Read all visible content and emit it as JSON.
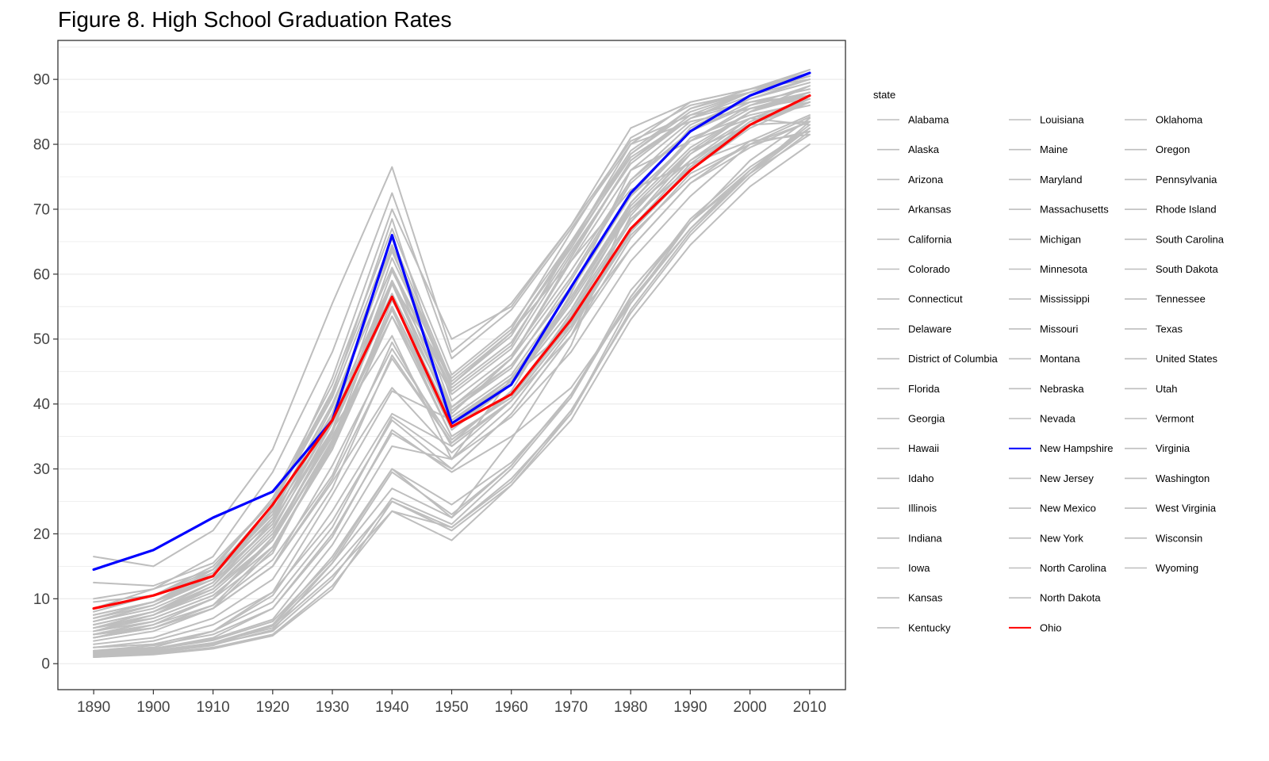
{
  "chart_data": {
    "type": "line",
    "title": "Figure 8. High School Graduation Rates",
    "xlabel": "",
    "ylabel": "",
    "x": [
      1890,
      1900,
      1910,
      1920,
      1930,
      1940,
      1950,
      1960,
      1970,
      1980,
      1990,
      2000,
      2010
    ],
    "xlim": [
      1884,
      2016
    ],
    "ylim": [
      -4,
      96
    ],
    "y_ticks": [
      0,
      10,
      20,
      30,
      40,
      50,
      60,
      70,
      80,
      90
    ],
    "grid": true,
    "legend_title": "state",
    "legend_position": "right",
    "colors": {
      "default": "#bebebe",
      "highlight_blue": "#0000ff",
      "highlight_red": "#ff0000"
    },
    "highlight": {
      "New Hampshire": "#0000ff",
      "Ohio": "#ff0000"
    },
    "series": [
      {
        "name": "Alabama",
        "values": [
          2.0,
          2.3,
          3.8,
          6.8,
          18.3,
          33.5,
          31.5,
          44.0,
          52.0,
          66.0,
          74.8,
          80.0,
          84.2
        ]
      },
      {
        "name": "Alaska",
        "values": [
          1.2,
          1.6,
          2.9,
          5.2,
          15.5,
          27.0,
          22.5,
          34.5,
          49.0,
          71.0,
          81.0,
          84.5,
          86.5
        ]
      },
      {
        "name": "Arizona",
        "values": [
          4.5,
          5.5,
          8.5,
          15.0,
          28.0,
          42.5,
          32.5,
          40.5,
          50.5,
          69.0,
          79.0,
          83.0,
          83.5
        ]
      },
      {
        "name": "Arkansas",
        "values": [
          1.5,
          1.9,
          3.1,
          5.8,
          14.5,
          25.0,
          20.5,
          27.5,
          38.5,
          55.5,
          67.0,
          76.0,
          83.0
        ]
      },
      {
        "name": "California",
        "values": [
          7.5,
          9.5,
          13.5,
          23.0,
          40.0,
          61.0,
          38.5,
          47.0,
          62.0,
          76.0,
          80.5,
          84.0,
          83.0
        ]
      },
      {
        "name": "Colorado",
        "values": [
          6.5,
          8.5,
          12.5,
          21.5,
          37.5,
          57.0,
          39.0,
          45.5,
          59.0,
          74.0,
          82.0,
          86.5,
          88.5
        ]
      },
      {
        "name": "Connecticut",
        "values": [
          8.0,
          10.5,
          14.5,
          23.5,
          38.5,
          64.0,
          39.5,
          46.0,
          58.0,
          72.0,
          82.5,
          87.0,
          89.5
        ]
      },
      {
        "name": "Delaware",
        "values": [
          5.5,
          7.0,
          10.5,
          18.0,
          33.0,
          53.5,
          35.0,
          41.0,
          54.0,
          68.0,
          77.5,
          84.0,
          86.0
        ]
      },
      {
        "name": "District of Columbia",
        "values": [
          6.0,
          8.0,
          12.0,
          21.0,
          36.0,
          50.5,
          31.5,
          38.0,
          48.0,
          62.0,
          72.0,
          80.0,
          82.0
        ]
      },
      {
        "name": "Florida",
        "values": [
          2.5,
          3.0,
          5.0,
          10.5,
          23.5,
          38.5,
          33.5,
          40.5,
          52.0,
          64.0,
          74.0,
          80.5,
          84.5
        ]
      },
      {
        "name": "Georgia",
        "values": [
          1.8,
          2.2,
          3.6,
          6.5,
          16.0,
          30.0,
          24.5,
          31.0,
          41.0,
          56.5,
          68.5,
          76.5,
          82.5
        ]
      },
      {
        "name": "Hawaii",
        "values": [
          3.0,
          4.0,
          7.0,
          13.0,
          27.0,
          47.5,
          34.0,
          42.0,
          57.0,
          76.0,
          83.5,
          85.5,
          87.5
        ]
      },
      {
        "name": "Idaho",
        "values": [
          5.0,
          6.5,
          10.0,
          19.5,
          36.0,
          58.5,
          39.5,
          47.0,
          59.5,
          74.5,
          82.0,
          86.0,
          88.0
        ]
      },
      {
        "name": "Illinois",
        "values": [
          5.5,
          7.5,
          11.0,
          19.0,
          34.5,
          55.0,
          36.0,
          43.0,
          56.0,
          70.5,
          79.5,
          85.0,
          87.5
        ]
      },
      {
        "name": "Indiana",
        "values": [
          6.0,
          8.0,
          11.5,
          20.0,
          35.0,
          53.5,
          37.5,
          43.0,
          54.5,
          68.5,
          76.5,
          83.0,
          86.5
        ]
      },
      {
        "name": "Iowa",
        "values": [
          7.0,
          9.0,
          13.0,
          22.5,
          38.5,
          59.0,
          41.5,
          48.5,
          63.0,
          77.5,
          84.5,
          88.0,
          90.5
        ]
      },
      {
        "name": "Kansas",
        "values": [
          6.5,
          9.0,
          13.5,
          23.5,
          40.0,
          61.0,
          42.5,
          49.5,
          63.5,
          77.0,
          84.0,
          87.5,
          90.0
        ]
      },
      {
        "name": "Kentucky",
        "values": [
          1.7,
          2.0,
          3.2,
          5.5,
          13.5,
          23.5,
          21.0,
          28.0,
          39.0,
          54.0,
          66.0,
          75.0,
          82.0
        ]
      },
      {
        "name": "Louisiana",
        "values": [
          1.5,
          1.8,
          3.0,
          5.0,
          13.0,
          25.5,
          21.5,
          30.0,
          41.0,
          57.5,
          68.0,
          75.5,
          81.5
        ]
      },
      {
        "name": "Maine",
        "values": [
          9.5,
          10.5,
          14.0,
          22.0,
          36.0,
          56.5,
          37.5,
          43.0,
          54.5,
          70.0,
          79.0,
          85.0,
          89.0
        ]
      },
      {
        "name": "Maryland",
        "values": [
          4.0,
          5.5,
          8.5,
          15.0,
          30.5,
          48.5,
          34.5,
          41.5,
          53.5,
          68.0,
          78.5,
          85.0,
          88.0
        ]
      },
      {
        "name": "Massachusetts",
        "values": [
          12.5,
          12.0,
          15.5,
          25.0,
          41.5,
          68.5,
          40.5,
          47.5,
          60.5,
          74.5,
          83.0,
          87.0,
          89.5
        ]
      },
      {
        "name": "Michigan",
        "values": [
          5.5,
          7.5,
          11.5,
          20.5,
          37.0,
          58.5,
          38.0,
          44.5,
          57.5,
          72.0,
          80.5,
          85.5,
          88.0
        ]
      },
      {
        "name": "Minnesota",
        "values": [
          4.5,
          6.5,
          10.0,
          19.5,
          35.5,
          60.5,
          42.0,
          49.0,
          64.5,
          80.0,
          86.5,
          88.5,
          91.5
        ]
      },
      {
        "name": "Mississippi",
        "values": [
          1.0,
          1.5,
          2.5,
          4.5,
          12.0,
          23.5,
          19.0,
          27.5,
          37.5,
          53.0,
          64.5,
          73.5,
          80.0
        ]
      },
      {
        "name": "Missouri",
        "values": [
          4.0,
          5.5,
          8.5,
          15.0,
          28.5,
          47.0,
          34.0,
          40.5,
          52.0,
          67.0,
          77.0,
          83.5,
          87.0
        ]
      },
      {
        "name": "Montana",
        "values": [
          7.0,
          9.5,
          14.0,
          24.5,
          41.0,
          64.5,
          43.0,
          51.0,
          64.0,
          78.5,
          85.5,
          88.0,
          90.5
        ]
      },
      {
        "name": "Nebraska",
        "values": [
          7.5,
          9.5,
          14.5,
          25.5,
          43.0,
          67.0,
          44.5,
          52.0,
          65.0,
          78.5,
          85.0,
          88.0,
          90.5
        ]
      },
      {
        "name": "Nevada",
        "values": [
          8.0,
          10.5,
          15.0,
          25.0,
          42.0,
          65.5,
          43.5,
          51.0,
          62.0,
          73.0,
          77.0,
          80.5,
          81.5
        ]
      },
      {
        "name": "New Hampshire",
        "values": [
          14.5,
          17.5,
          22.5,
          26.5,
          37.5,
          66.0,
          37.0,
          43.0,
          58.0,
          72.5,
          82.0,
          87.5,
          91.0
        ]
      },
      {
        "name": "New Jersey",
        "values": [
          4.5,
          6.5,
          10.0,
          17.0,
          34.5,
          55.0,
          37.0,
          44.0,
          56.5,
          71.0,
          80.5,
          85.5,
          88.0
        ]
      },
      {
        "name": "New Mexico",
        "values": [
          2.5,
          3.5,
          6.0,
          11.0,
          22.0,
          37.5,
          30.0,
          38.5,
          50.5,
          65.5,
          75.5,
          80.0,
          83.5
        ]
      },
      {
        "name": "New York",
        "values": [
          7.5,
          9.5,
          13.0,
          21.5,
          38.0,
          57.0,
          36.5,
          43.0,
          55.5,
          69.5,
          78.5,
          84.0,
          87.0
        ]
      },
      {
        "name": "North Carolina",
        "values": [
          1.3,
          1.7,
          2.8,
          6.0,
          16.5,
          30.0,
          22.5,
          30.5,
          41.5,
          56.0,
          67.0,
          75.5,
          83.5
        ]
      },
      {
        "name": "North Dakota",
        "values": [
          3.5,
          5.0,
          8.5,
          17.5,
          34.0,
          58.5,
          44.0,
          51.5,
          66.5,
          81.0,
          86.0,
          88.0,
          91.5
        ]
      },
      {
        "name": "Ohio",
        "values": [
          8.5,
          10.5,
          13.5,
          24.5,
          37.5,
          56.5,
          36.5,
          41.5,
          53.0,
          67.0,
          76.0,
          83.0,
          87.5
        ]
      },
      {
        "name": "Oklahoma",
        "values": [
          2.0,
          2.5,
          5.0,
          11.0,
          26.0,
          42.0,
          37.5,
          44.0,
          56.0,
          70.0,
          77.5,
          83.0,
          86.5
        ]
      },
      {
        "name": "Oregon",
        "values": [
          8.5,
          11.5,
          16.5,
          29.5,
          48.0,
          72.5,
          47.0,
          54.5,
          67.0,
          80.0,
          83.5,
          85.5,
          87.0
        ]
      },
      {
        "name": "Pennsylvania",
        "values": [
          5.0,
          7.0,
          10.5,
          18.0,
          33.5,
          53.5,
          37.0,
          43.5,
          56.0,
          71.0,
          80.5,
          86.0,
          89.0
        ]
      },
      {
        "name": "Rhode Island",
        "values": [
          6.0,
          8.0,
          11.5,
          19.0,
          34.0,
          54.5,
          35.0,
          41.0,
          52.5,
          66.5,
          76.5,
          83.5,
          86.5
        ]
      },
      {
        "name": "South Carolina",
        "values": [
          1.0,
          1.4,
          2.3,
          4.3,
          11.5,
          25.0,
          21.0,
          28.5,
          38.5,
          54.5,
          66.5,
          75.5,
          82.5
        ]
      },
      {
        "name": "South Dakota",
        "values": [
          4.0,
          6.0,
          10.0,
          19.0,
          36.0,
          62.5,
          43.0,
          50.5,
          65.0,
          79.0,
          85.5,
          88.5,
          91.0
        ]
      },
      {
        "name": "Tennessee",
        "values": [
          1.5,
          1.9,
          3.2,
          6.0,
          15.5,
          29.5,
          23.0,
          30.5,
          41.5,
          56.5,
          68.0,
          76.0,
          82.5
        ]
      },
      {
        "name": "Texas",
        "values": [
          1.8,
          2.3,
          4.0,
          8.5,
          20.0,
          35.5,
          30.0,
          38.5,
          50.5,
          64.0,
          74.0,
          79.5,
          83.5
        ]
      },
      {
        "name": "United States",
        "values": [
          4.5,
          6.0,
          9.0,
          16.0,
          29.0,
          49.5,
          33.5,
          40.5,
          52.0,
          66.5,
          76.0,
          82.5,
          86.5
        ]
      },
      {
        "name": "Utah",
        "values": [
          5.5,
          8.0,
          12.5,
          24.0,
          44.0,
          70.0,
          50.0,
          55.0,
          67.5,
          82.5,
          86.5,
          88.5,
          90.0
        ]
      },
      {
        "name": "Vermont",
        "values": [
          10.0,
          11.5,
          14.5,
          23.0,
          37.0,
          59.0,
          39.0,
          46.0,
          58.0,
          72.0,
          82.5,
          87.0,
          90.0
        ]
      },
      {
        "name": "Virginia",
        "values": [
          2.5,
          3.0,
          5.0,
          9.5,
          21.0,
          38.0,
          31.5,
          39.5,
          51.5,
          66.5,
          76.5,
          83.0,
          87.0
        ]
      },
      {
        "name": "Washington",
        "values": [
          16.5,
          15.0,
          20.5,
          33.0,
          55.5,
          76.5,
          48.0,
          55.5,
          67.5,
          80.5,
          84.5,
          86.5,
          87.5
        ]
      },
      {
        "name": "West Virginia",
        "values": [
          2.0,
          2.8,
          4.5,
          8.5,
          19.5,
          36.0,
          29.5,
          35.0,
          42.5,
          55.5,
          68.0,
          77.5,
          84.0
        ]
      },
      {
        "name": "Wisconsin",
        "values": [
          4.0,
          5.5,
          9.0,
          18.0,
          33.0,
          56.0,
          39.5,
          47.0,
          62.5,
          77.5,
          84.0,
          88.0,
          91.0
        ]
      },
      {
        "name": "Wyoming",
        "values": [
          5.0,
          7.5,
          12.0,
          22.0,
          39.5,
          63.5,
          43.0,
          51.0,
          64.5,
          78.0,
          84.0,
          86.5,
          88.5
        ]
      }
    ]
  }
}
